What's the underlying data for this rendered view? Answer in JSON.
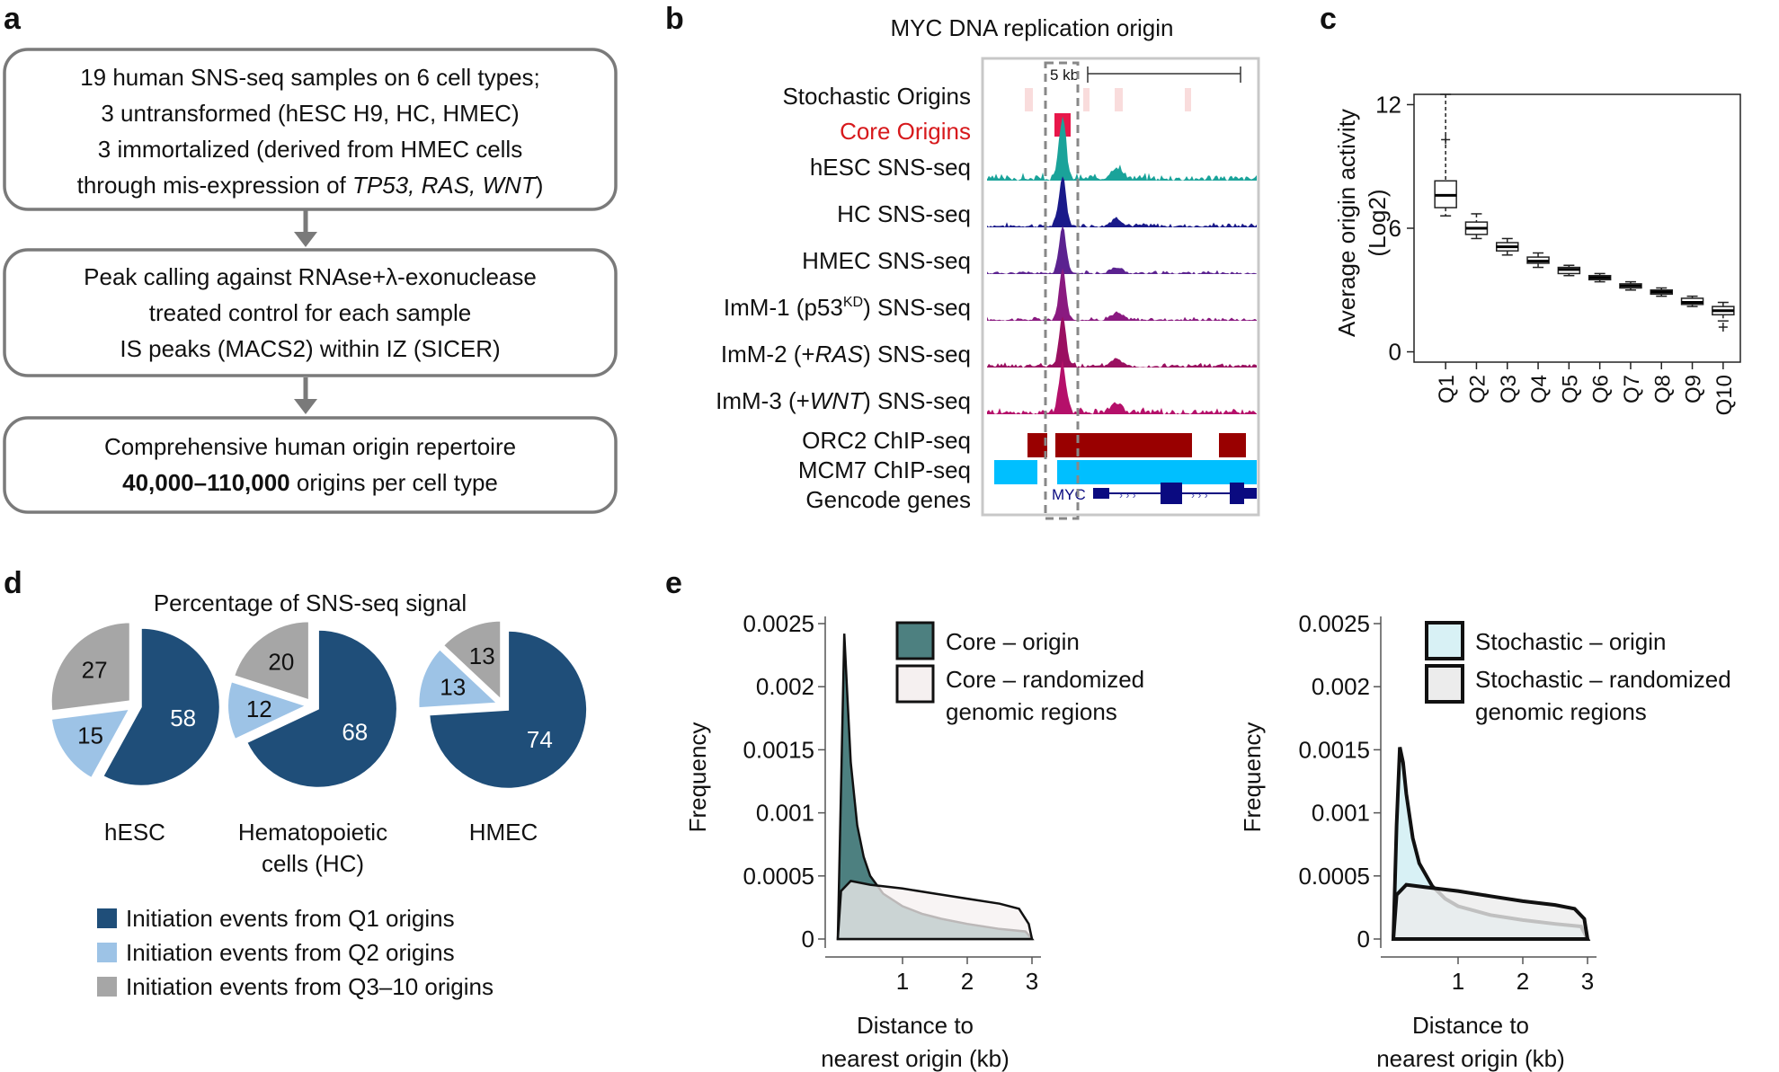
{
  "panel_labels": {
    "a": "a",
    "b": "b",
    "c": "c",
    "d": "d",
    "e": "e"
  },
  "flowchart": {
    "box1": {
      "line1": "19 human SNS-seq samples on 6 cell types;",
      "line2": "3 untransformed (hESC H9, HC, HMEC)",
      "line3": "3 immortalized (derived from HMEC cells",
      "line4_pre": "through mis-expression of ",
      "line4_italic": "TP53, RAS, WNT",
      "line4_post": ")"
    },
    "box2": {
      "line1": "Peak calling against RNAse+λ-exonuclease",
      "line2": "treated control for each sample",
      "line3": "IS peaks (MACS2) within IZ (SICER)"
    },
    "box3": {
      "line1": "Comprehensive human origin repertoire",
      "line2_bold": "40,000–110,000",
      "line2_rest": " origins per cell type"
    }
  },
  "tracks": {
    "title": "MYC DNA replication origin",
    "scale_label": "5 kb",
    "stochastic": "Stochastic Origins",
    "core": "Core Origins",
    "hesc": "hESC SNS-seq",
    "hc": "HC SNS-seq",
    "hmec": "HMEC SNS-seq",
    "imm1_pre": "ImM-1 (p53",
    "imm1_sup": "KD",
    "imm1_post": ") SNS-seq",
    "imm2_pre": "ImM-2 (+",
    "imm2_italic": "RAS",
    "imm2_post": ") SNS-seq",
    "imm3_pre": "ImM-3 (+",
    "imm3_italic": "WNT",
    "imm3_post": ") SNS-seq",
    "orc2": "ORC2 ChIP-seq",
    "mcm7": "MCM7 ChIP-seq",
    "gencode": "Gencode genes",
    "gene": "MYC",
    "colors": {
      "stochastic": "#f9dcdc",
      "core": "#e8174a",
      "hesc": "#1aa39a",
      "hc": "#1a1a8a",
      "hmec": "#5b2290",
      "imm1": "#8a1a80",
      "imm2": "#9a1060",
      "imm3": "#b5106a",
      "orc2": "#990000",
      "mcm7": "#00bfff",
      "gene": "#0a0a80"
    }
  },
  "chart_data": [
    {
      "type": "boxplot",
      "ylabel_line1": "Average origin activity",
      "ylabel_line2": "(Log2)",
      "categories": [
        "Q1",
        "Q2",
        "Q3",
        "Q4",
        "Q5",
        "Q6",
        "Q7",
        "Q8",
        "Q9",
        "Q10"
      ],
      "ylim": [
        -0.5,
        12.5
      ],
      "yticks": [
        "0",
        "6",
        "12"
      ],
      "boxes": [
        {
          "min": 6.6,
          "q1": 7.0,
          "median": 7.6,
          "q3": 8.3,
          "max": 12.5,
          "outliers": [
            10.3
          ]
        },
        {
          "min": 5.5,
          "q1": 5.7,
          "median": 6.0,
          "q3": 6.3,
          "max": 6.7
        },
        {
          "min": 4.7,
          "q1": 4.9,
          "median": 5.1,
          "q3": 5.3,
          "max": 5.5
        },
        {
          "min": 4.1,
          "q1": 4.3,
          "median": 4.4,
          "q3": 4.6,
          "max": 4.8
        },
        {
          "min": 3.7,
          "q1": 3.8,
          "median": 4.0,
          "q3": 4.1,
          "max": 4.2
        },
        {
          "min": 3.4,
          "q1": 3.5,
          "median": 3.6,
          "q3": 3.7,
          "max": 3.8
        },
        {
          "min": 3.0,
          "q1": 3.1,
          "median": 3.2,
          "q3": 3.3,
          "max": 3.4
        },
        {
          "min": 2.7,
          "q1": 2.8,
          "median": 2.9,
          "q3": 3.0,
          "max": 3.1
        },
        {
          "min": 2.2,
          "q1": 2.3,
          "median": 2.4,
          "q3": 2.6,
          "max": 2.7
        },
        {
          "min": 1.5,
          "q1": 1.8,
          "median": 2.0,
          "q3": 2.2,
          "max": 2.4,
          "outliers": [
            1.2
          ]
        }
      ]
    },
    {
      "type": "pie",
      "title": "Percentage of SNS-seq signal",
      "pies": [
        {
          "label_line1": "hESC",
          "label_line2": "",
          "values": [
            58,
            15,
            27
          ]
        },
        {
          "label_line1": "Hematopoietic",
          "label_line2": "cells (HC)",
          "values": [
            68,
            12,
            20
          ]
        },
        {
          "label_line1": "HMEC",
          "label_line2": "",
          "values": [
            74,
            13,
            13
          ]
        }
      ],
      "legend": [
        "Initiation events from Q1 origins",
        "Initiation events from Q2 origins",
        "Initiation events from Q3–10 origins"
      ],
      "colors": [
        "#1f4e79",
        "#9dc3e6",
        "#a6a6a6"
      ]
    },
    {
      "type": "area",
      "ylabel": "Frequency",
      "xlabel_line1": "Distance to",
      "xlabel_line2": "nearest origin (kb)",
      "xlim": [
        0,
        3
      ],
      "ylim": [
        0,
        0.0025
      ],
      "xticks": [
        "1",
        "2",
        "3"
      ],
      "yticks": [
        "0",
        "0.0005",
        "0.001",
        "0.0015",
        "0.002",
        "0.0025"
      ],
      "series": [
        {
          "name": "Core – origin",
          "x": [
            0,
            0.05,
            0.1,
            0.15,
            0.2,
            0.3,
            0.4,
            0.5,
            0.7,
            1.0,
            1.3,
            1.6,
            2.0,
            2.5,
            2.9,
            3.0
          ],
          "y": [
            0,
            0.0012,
            0.00242,
            0.0019,
            0.0014,
            0.0009,
            0.00065,
            0.0005,
            0.00036,
            0.00026,
            0.0002,
            0.00016,
            0.00012,
            8e-05,
            6e-05,
            0
          ]
        },
        {
          "name": "Core – randomized genomic regions",
          "x": [
            0,
            0.05,
            0.2,
            0.5,
            1.0,
            1.5,
            2.0,
            2.5,
            2.8,
            2.95,
            3.0
          ],
          "y": [
            0,
            0.00038,
            0.00046,
            0.00043,
            0.0004,
            0.00036,
            0.00032,
            0.00028,
            0.00024,
            0.00012,
            0
          ]
        }
      ],
      "legend": [
        {
          "line1": "Core – origin",
          "line2": ""
        },
        {
          "line1": "Core – randomized",
          "line2": "genomic regions"
        }
      ],
      "colors": [
        "#4d8080",
        "#f5f0f0"
      ]
    },
    {
      "type": "area",
      "ylabel": "Frequency",
      "xlabel_line1": "Distance to",
      "xlabel_line2": "nearest origin (kb)",
      "xlim": [
        0,
        3
      ],
      "ylim": [
        0,
        0.0025
      ],
      "xticks": [
        "1",
        "2",
        "3"
      ],
      "yticks": [
        "0",
        "0.0005",
        "0.001",
        "0.0015",
        "0.002",
        "0.0025"
      ],
      "series": [
        {
          "name": "Stochastic – origin",
          "x": [
            0,
            0.05,
            0.1,
            0.15,
            0.2,
            0.3,
            0.4,
            0.6,
            0.8,
            1.0,
            1.5,
            2.0,
            2.5,
            2.9,
            3.0
          ],
          "y": [
            0,
            0.0009,
            0.00152,
            0.0014,
            0.00115,
            0.0008,
            0.0006,
            0.00042,
            0.00032,
            0.00026,
            0.00019,
            0.00015,
            0.00012,
            0.0001,
            0
          ]
        },
        {
          "name": "Stochastic – randomized genomic regions",
          "x": [
            0,
            0.05,
            0.2,
            0.5,
            1.0,
            1.5,
            2.0,
            2.5,
            2.8,
            2.95,
            3.0
          ],
          "y": [
            0,
            0.00035,
            0.00043,
            0.00041,
            0.00038,
            0.00034,
            0.0003,
            0.00027,
            0.00024,
            0.00016,
            0
          ]
        }
      ],
      "legend": [
        {
          "line1": "Stochastic – origin",
          "line2": ""
        },
        {
          "line1": "Stochastic – randomized",
          "line2": "genomic regions"
        }
      ],
      "colors": [
        "#d8f1f5",
        "#ececec"
      ]
    }
  ]
}
